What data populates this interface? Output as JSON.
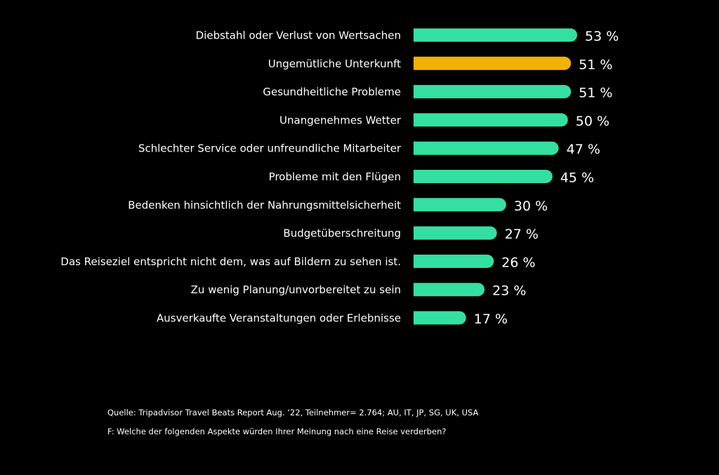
{
  "chart_data": {
    "type": "bar",
    "orientation": "horizontal",
    "categories": [
      "Diebstahl oder Verlust von Wertsachen",
      "Ungemütliche Unterkunft",
      "Gesundheitliche Probleme",
      "Unangenehmes Wetter",
      "Schlechter Service oder unfreundliche Mitarbeiter",
      "Probleme mit den Flügen",
      "Bedenken hinsichtlich der Nahrungsmittelsicherheit",
      "Budgetüberschreitung",
      "Das Reiseziel entspricht nicht dem, was auf Bildern zu sehen ist.",
      "Zu wenig Planung/unvorbereitet zu sein",
      "Ausverkaufte Veranstaltungen oder Erlebnisse"
    ],
    "values": [
      53,
      51,
      51,
      50,
      47,
      45,
      30,
      27,
      26,
      23,
      17
    ],
    "value_labels": [
      "53 %",
      "51 %",
      "51 %",
      "50 %",
      "47 %",
      "45 %",
      "30 %",
      "27 %",
      "26 %",
      "23 %",
      "17 %"
    ],
    "highlight_index": 1,
    "colors": {
      "bar": "#34e0a1",
      "highlight": "#f2b203",
      "background": "#000000",
      "text": "#ffffff"
    },
    "grid": false,
    "legend": "none"
  },
  "footnotes": {
    "source": "Quelle: Tripadvisor Travel Beats Report Aug. ‘22, Teilnehmer= 2.764; AU, IT, JP, SG, UK, USA",
    "question": "F: Welche der folgenden Aspekte würden Ihrer Meinung nach eine Reise verderben?"
  }
}
